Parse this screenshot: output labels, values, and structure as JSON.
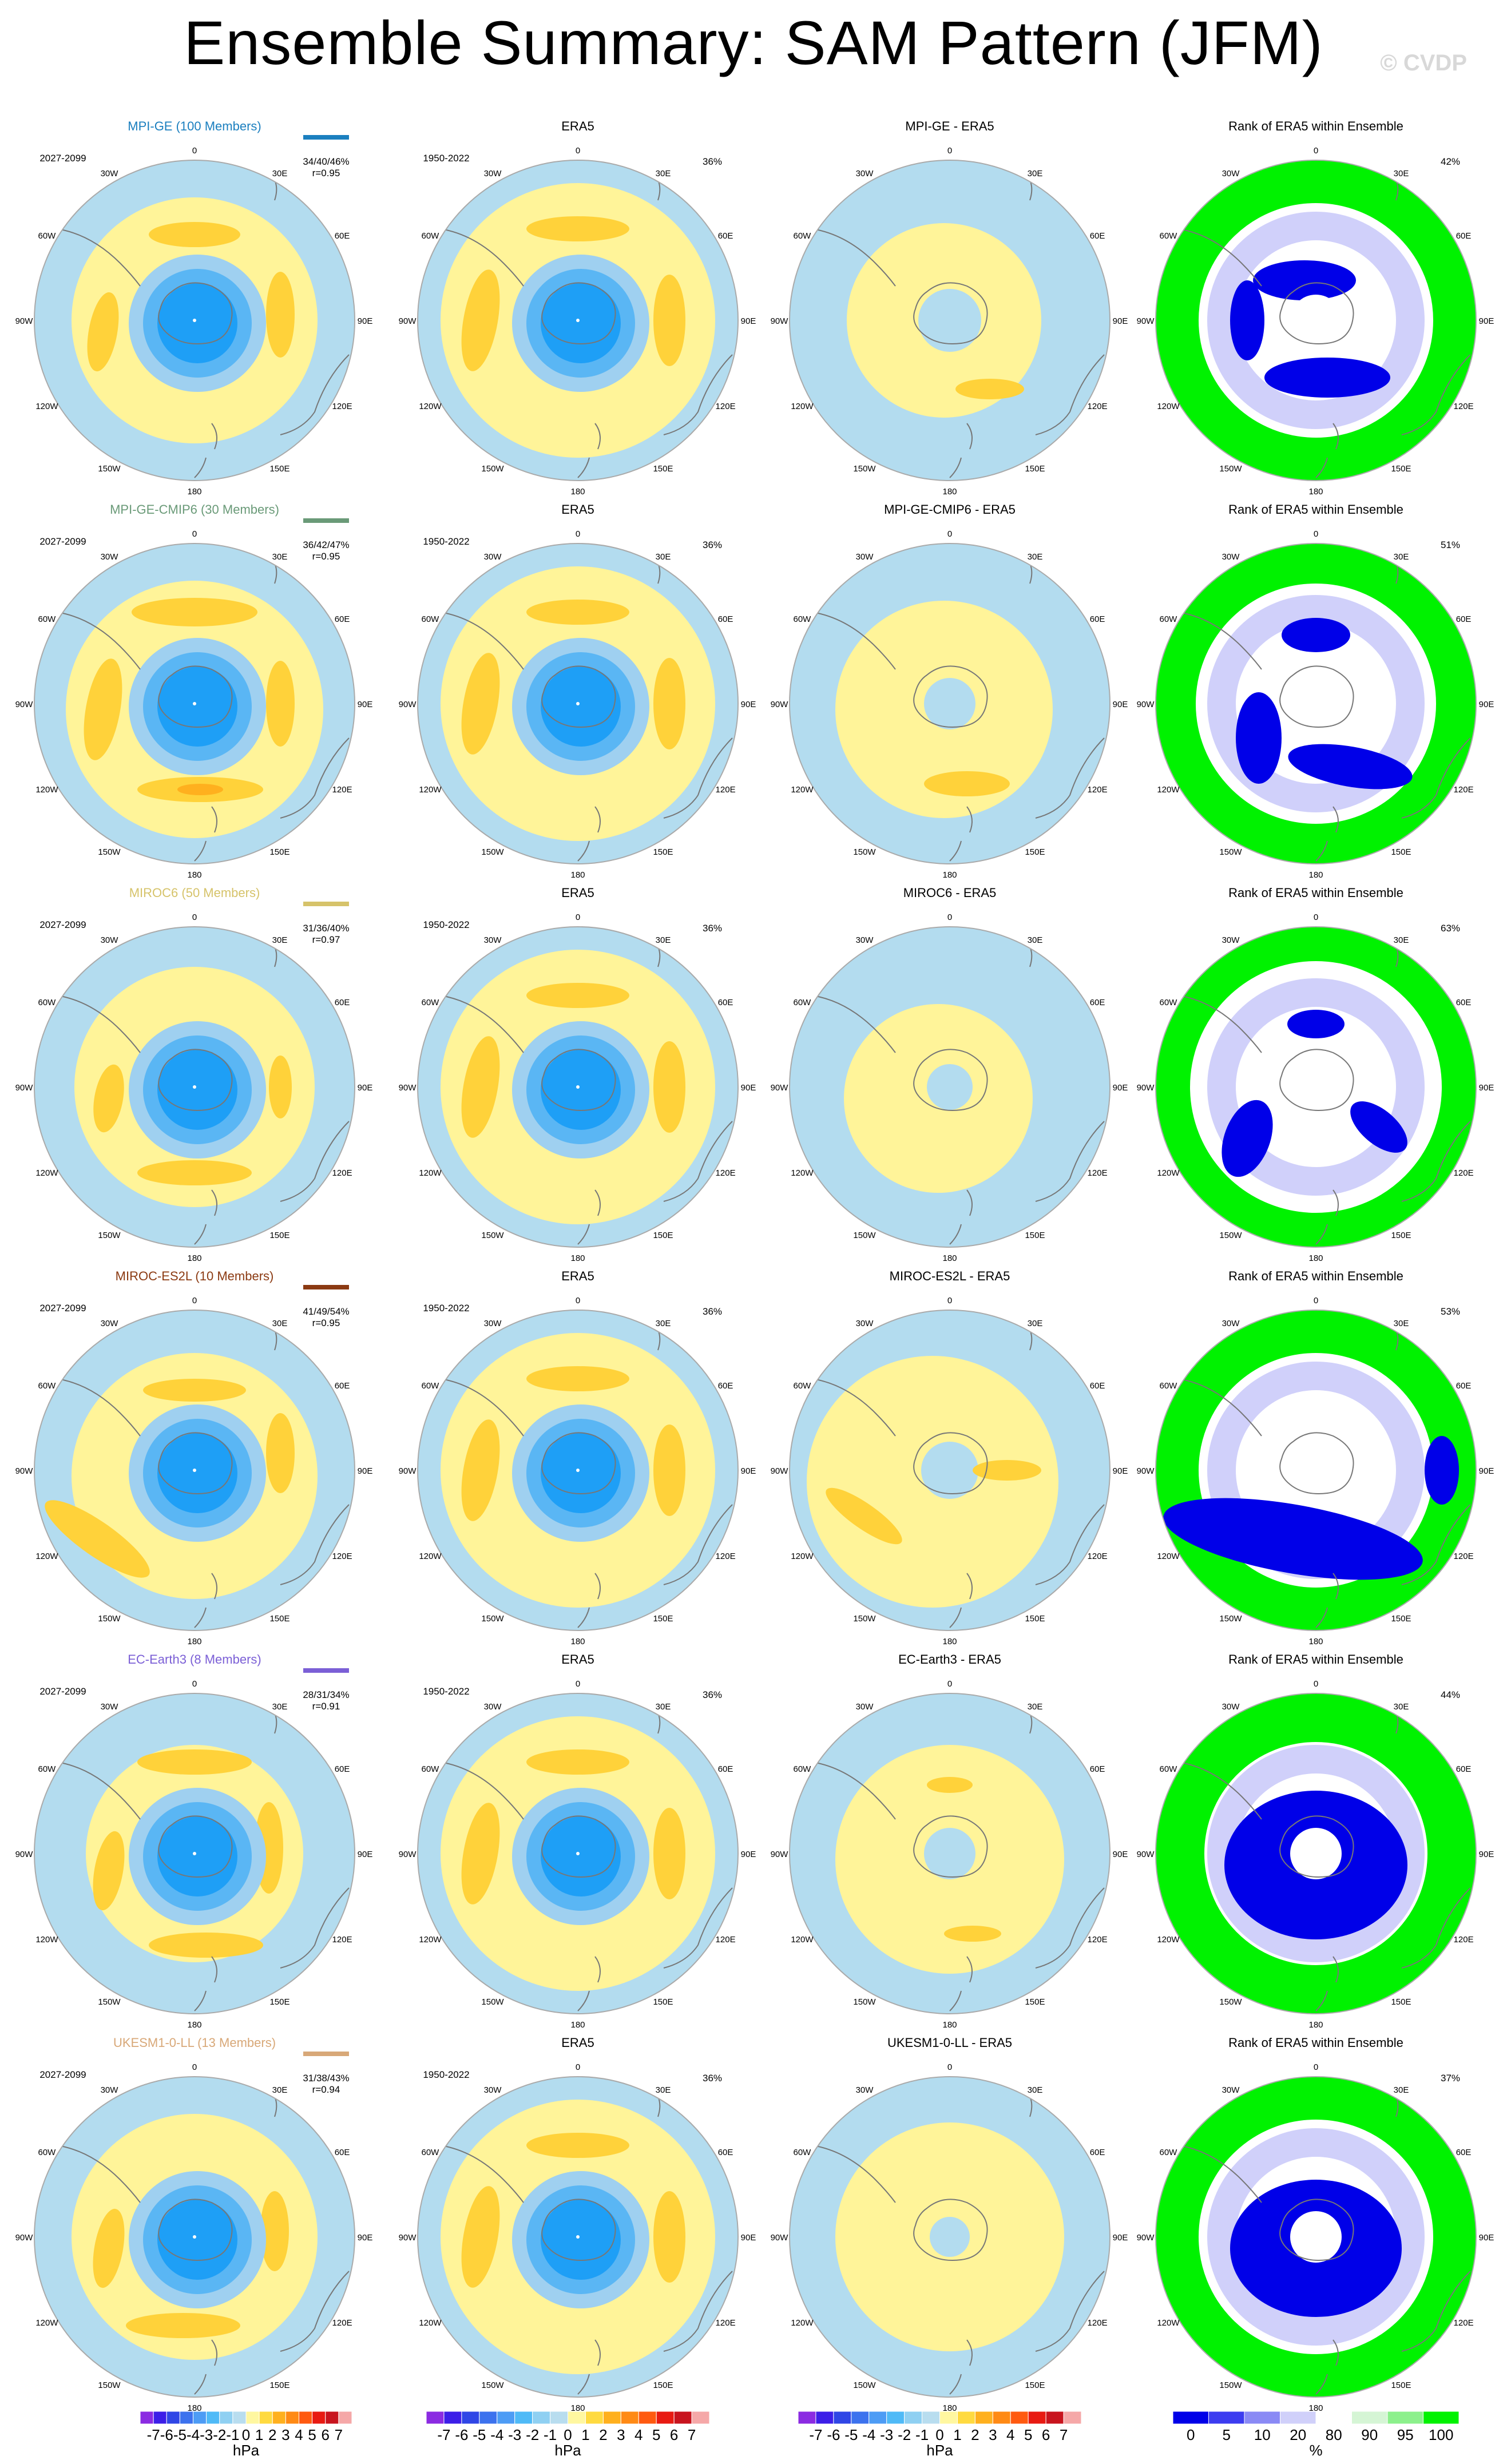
{
  "title": "Ensemble Summary: SAM Pattern (JFM)",
  "copyright": "© CVDP",
  "colors": {
    "model_title": [
      "#1b7fbf",
      "#6a9a78",
      "#d6c36a",
      "#8b3a12",
      "#7b5fd6",
      "#d8a878"
    ],
    "land_outline": "#777777",
    "ocean_neutral": "#b3dcef",
    "neutral_pos": "#fff499",
    "pos_1": "#ffd23a",
    "pos_2": "#ffb01e",
    "neg_1": "#9fd0f0",
    "neg_2": "#5ab6f4",
    "neg_3": "#1e9ff6",
    "rank_green": "#00f200",
    "rank_blue": "#0000e8"
  },
  "headers": {
    "era5": "ERA5",
    "rank": "Rank of ERA5 within Ensemble"
  },
  "period_model": "2027-2099",
  "period_obs": "1950-2022",
  "era5_pct": "36%",
  "lon_labels": [
    "0",
    "30E",
    "60E",
    "90E",
    "120E",
    "150E",
    "180",
    "150W",
    "120W",
    "90W",
    "60W",
    "30W"
  ],
  "rows": [
    {
      "model": "MPI-GE (100 Members)",
      "diff": "MPI-GE - ERA5",
      "stats": "34/40/46%",
      "corr": "r=0.95",
      "rank_pct": "42%"
    },
    {
      "model": "MPI-GE-CMIP6 (30 Members)",
      "diff": "MPI-GE-CMIP6 - ERA5",
      "stats": "36/42/47%",
      "corr": "r=0.95",
      "rank_pct": "51%"
    },
    {
      "model": "MIROC6 (50 Members)",
      "diff": "MIROC6 - ERA5",
      "stats": "31/36/40%",
      "corr": "r=0.97",
      "rank_pct": "63%"
    },
    {
      "model": "MIROC-ES2L (10 Members)",
      "diff": "MIROC-ES2L - ERA5",
      "stats": "41/49/54%",
      "corr": "r=0.95",
      "rank_pct": "53%"
    },
    {
      "model": "EC-Earth3 (8 Members)",
      "diff": "EC-Earth3 - ERA5",
      "stats": "28/31/34%",
      "corr": "r=0.91",
      "rank_pct": "44%"
    },
    {
      "model": "UKESM1-0-LL (13 Members)",
      "diff": "UKESM1-0-LL - ERA5",
      "stats": "31/38/43%",
      "corr": "r=0.94",
      "rank_pct": "37%"
    }
  ],
  "colorbar_hpa": {
    "labels": [
      "-7",
      "-6",
      "-5",
      "-4",
      "-3",
      "-2",
      "-1",
      "0",
      "1",
      "2",
      "3",
      "4",
      "5",
      "6",
      "7"
    ],
    "units": "hPa",
    "colors": [
      "#8b2be2",
      "#3c1ee8",
      "#2f46e6",
      "#3c72ee",
      "#4d9cf5",
      "#4fbaf7",
      "#8fd0f2",
      "#b8ddef",
      "#fff7a0",
      "#ffda40",
      "#ffb01e",
      "#ff8a15",
      "#ff5a10",
      "#e81a12",
      "#c8141e",
      "#f5a8a8"
    ]
  },
  "colorbar_rank": {
    "labels": [
      "0",
      "5",
      "10",
      "20",
      "80",
      "90",
      "95",
      "100"
    ],
    "units": "%",
    "colors": [
      "#0000e8",
      "#3c3cf0",
      "#8a8af5",
      "#d0d0fa",
      "#ffffff",
      "#d5f5d5",
      "#8cf08c",
      "#00f200"
    ]
  }
}
